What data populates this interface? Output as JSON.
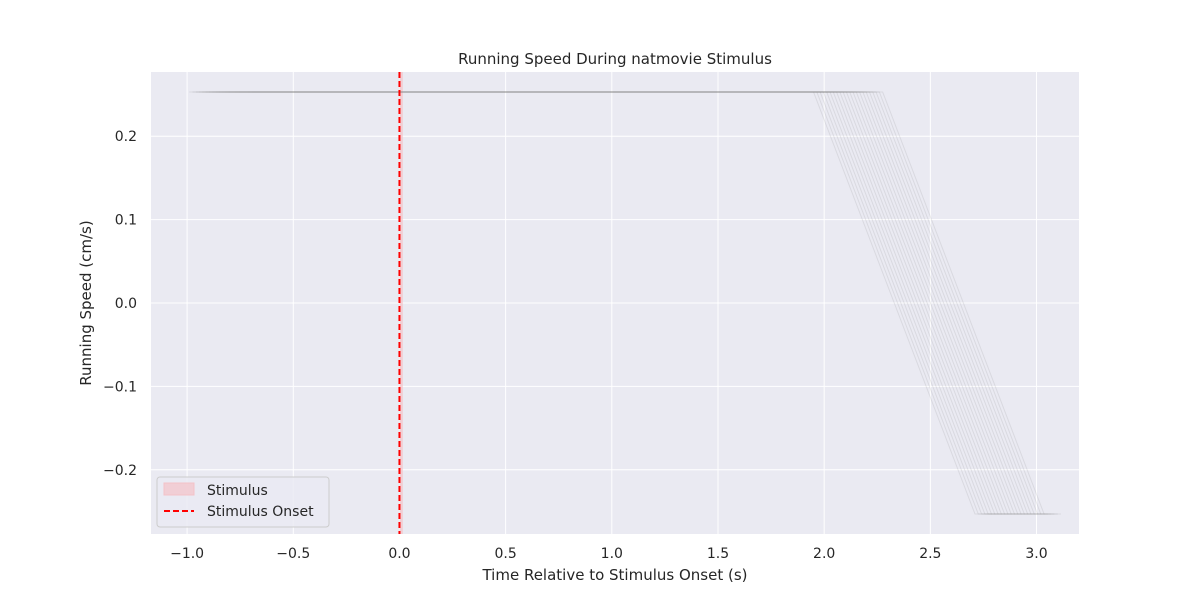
{
  "chart_data": {
    "type": "line",
    "title": "Running Speed During natmovie Stimulus",
    "xlabel": "Time Relative to Stimulus Onset (s)",
    "ylabel": "Running Speed (cm/s)",
    "xlim": [
      -1.17,
      3.2
    ],
    "ylim": [
      -0.277,
      0.277
    ],
    "xticks": [
      -1.0,
      -0.5,
      0.0,
      0.5,
      1.0,
      1.5,
      2.0,
      2.5,
      3.0
    ],
    "xtick_labels": [
      "−1.0",
      "−0.5",
      "0.0",
      "0.5",
      "1.0",
      "1.5",
      "2.0",
      "2.5",
      "3.0"
    ],
    "yticks": [
      -0.2,
      -0.1,
      0.0,
      0.1,
      0.2
    ],
    "ytick_labels": [
      "−0.2",
      "−0.1",
      "0.0",
      "0.1",
      "0.2"
    ],
    "grid": true,
    "legend": {
      "placement": "lower-left",
      "entries": [
        {
          "label": "Stimulus",
          "kind": "patch",
          "color": "#f4c2c8"
        },
        {
          "label": "Stimulus Onset",
          "kind": "dashed-line",
          "color": "#ff0000"
        }
      ]
    },
    "stimulus_span": {
      "x": [
        0.0,
        0.016
      ],
      "color": "#f4c2c8"
    },
    "onset_line": {
      "x": 0.0,
      "color": "#ff0000",
      "style": "dashed"
    },
    "trials": {
      "count": 22,
      "color": "#808080",
      "plateau_value": 0.253,
      "low_value": -0.253,
      "first_trial": {
        "x": [
          -0.99,
          1.95,
          2.71,
          2.79
        ],
        "y": [
          0.253,
          0.253,
          -0.253,
          -0.253
        ]
      },
      "trial_time_shift": 0.0155
    },
    "colors": {
      "plot_background": "#eaeaf2",
      "grid": "#ffffff",
      "text": "#262626"
    }
  }
}
